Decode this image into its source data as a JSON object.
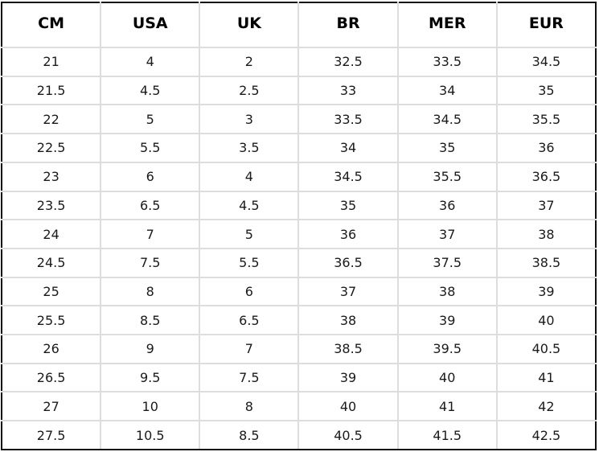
{
  "table": {
    "headers": [
      "CM",
      "USA",
      "UK",
      "BR",
      "MER",
      "EUR"
    ],
    "rows": [
      [
        "21",
        "4",
        "2",
        "32.5",
        "33.5",
        "34.5"
      ],
      [
        "21.5",
        "4.5",
        "2.5",
        "33",
        "34",
        "35"
      ],
      [
        "22",
        "5",
        "3",
        "33.5",
        "34.5",
        "35.5"
      ],
      [
        "22.5",
        "5.5",
        "3.5",
        "34",
        "35",
        "36"
      ],
      [
        "23",
        "6",
        "4",
        "34.5",
        "35.5",
        "36.5"
      ],
      [
        "23.5",
        "6.5",
        "4.5",
        "35",
        "36",
        "37"
      ],
      [
        "24",
        "7",
        "5",
        "36",
        "37",
        "38"
      ],
      [
        "24.5",
        "7.5",
        "5.5",
        "36.5",
        "37.5",
        "38.5"
      ],
      [
        "25",
        "8",
        "6",
        "37",
        "38",
        "39"
      ],
      [
        "25.5",
        "8.5",
        "6.5",
        "38",
        "39",
        "40"
      ],
      [
        "26",
        "9",
        "7",
        "38.5",
        "39.5",
        "40.5"
      ],
      [
        "26.5",
        "9.5",
        "7.5",
        "39",
        "40",
        "41"
      ],
      [
        "27",
        "10",
        "8",
        "40",
        "41",
        "42"
      ],
      [
        "27.5",
        "10.5",
        "8.5",
        "40.5",
        "41.5",
        "42.5"
      ]
    ]
  }
}
